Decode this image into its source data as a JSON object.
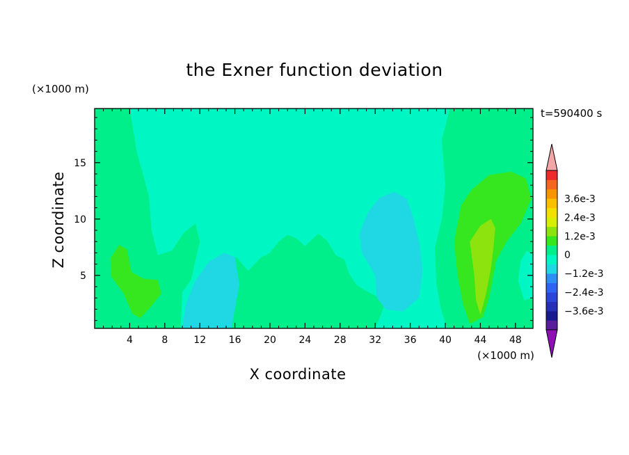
{
  "chart_data": {
    "type": "heatmap",
    "title": "the Exner function deviation",
    "xlabel": "X coordinate",
    "ylabel": "Z coordinate",
    "x_unit": "(×1000 m)",
    "y_unit": "(×1000 m)",
    "time_label": "t=590400 s",
    "xlim": [
      0,
      50
    ],
    "ylim": [
      0.3,
      19.8
    ],
    "x_ticks": [
      4,
      8,
      12,
      16,
      20,
      24,
      28,
      32,
      36,
      40,
      44,
      48
    ],
    "y_ticks": [
      5,
      10,
      15
    ],
    "background_value": -0.0003,
    "regions": [
      {
        "name": "left-column",
        "value": 0.0003,
        "points": [
          [
            0,
            19.8
          ],
          [
            4,
            19.8
          ],
          [
            4.8,
            16
          ],
          [
            6.2,
            12
          ],
          [
            6.5,
            9
          ],
          [
            7.2,
            6.8
          ],
          [
            8.8,
            7.2
          ],
          [
            10.2,
            8.8
          ],
          [
            11.5,
            9.6
          ],
          [
            12,
            8
          ],
          [
            11,
            4.6
          ],
          [
            10,
            3.5
          ],
          [
            9.8,
            0.3
          ],
          [
            0,
            0.3
          ]
        ]
      },
      {
        "name": "left-blob",
        "value": 0.0009,
        "points": [
          [
            1.8,
            6.5
          ],
          [
            2.8,
            7.7
          ],
          [
            3.7,
            7.3
          ],
          [
            4.2,
            5.3
          ],
          [
            5.6,
            4.7
          ],
          [
            7.2,
            4.6
          ],
          [
            7.6,
            3.4
          ],
          [
            6.4,
            2.2
          ],
          [
            5.2,
            1.2
          ],
          [
            4.3,
            1.6
          ],
          [
            3.3,
            3.4
          ],
          [
            1.9,
            4.9
          ]
        ]
      },
      {
        "name": "center-band",
        "value": 0.0003,
        "points": [
          [
            11,
            0.3
          ],
          [
            12.5,
            4
          ],
          [
            14,
            6.3
          ],
          [
            16.2,
            6.6
          ],
          [
            17.5,
            5.4
          ],
          [
            19,
            6.6
          ],
          [
            20,
            7
          ],
          [
            21,
            8
          ],
          [
            22,
            8.6
          ],
          [
            23,
            8.3
          ],
          [
            24,
            7.6
          ],
          [
            25.5,
            8.7
          ],
          [
            26.5,
            8.1
          ],
          [
            27.5,
            6.8
          ],
          [
            28.5,
            6.4
          ],
          [
            29,
            5.2
          ],
          [
            29.8,
            4.2
          ],
          [
            30.8,
            3.7
          ],
          [
            32.5,
            3
          ],
          [
            33,
            2.2
          ],
          [
            32,
            0.3
          ]
        ]
      },
      {
        "name": "right-column",
        "value": 0.0003,
        "points": [
          [
            50,
            19.8
          ],
          [
            40.5,
            19.8
          ],
          [
            39.6,
            17
          ],
          [
            40,
            13
          ],
          [
            39.6,
            10
          ],
          [
            38.8,
            7.4
          ],
          [
            39,
            4.2
          ],
          [
            39.5,
            2
          ],
          [
            40.2,
            0.3
          ],
          [
            50,
            0.3
          ],
          [
            50,
            6
          ],
          [
            49,
            7.5
          ],
          [
            48.3,
            6.4
          ],
          [
            48.2,
            4
          ],
          [
            48.8,
            3
          ],
          [
            50,
            3.2
          ]
        ]
      },
      {
        "name": "right-blob",
        "value": 0.0009,
        "points": [
          [
            41.8,
            11.2
          ],
          [
            43,
            12.6
          ],
          [
            45,
            13.9
          ],
          [
            47.5,
            14.2
          ],
          [
            49.2,
            13.6
          ],
          [
            49.8,
            11.8
          ],
          [
            48.6,
            9.6
          ],
          [
            47,
            8
          ],
          [
            45.8,
            6.3
          ],
          [
            45,
            3
          ],
          [
            44.3,
            1.3
          ],
          [
            42.8,
            0.7
          ],
          [
            42,
            2.5
          ],
          [
            41.4,
            5
          ],
          [
            41,
            8
          ]
        ]
      },
      {
        "name": "right-core",
        "value": 0.0015,
        "points": [
          [
            44,
            9.4
          ],
          [
            45.2,
            10
          ],
          [
            45.7,
            9.2
          ],
          [
            45.5,
            7.5
          ],
          [
            45.2,
            5.6
          ],
          [
            44.6,
            3.2
          ],
          [
            44,
            1.5
          ],
          [
            43.5,
            2.8
          ],
          [
            43.3,
            5
          ],
          [
            43,
            6.8
          ],
          [
            42.8,
            8
          ]
        ]
      },
      {
        "name": "center-left-blob",
        "value": -0.0009,
        "points": [
          [
            10,
            0.3
          ],
          [
            10.4,
            2.4
          ],
          [
            11.4,
            4.4
          ],
          [
            13,
            6.2
          ],
          [
            14.8,
            7
          ],
          [
            16,
            6.6
          ],
          [
            16.5,
            4.2
          ],
          [
            16,
            2
          ],
          [
            15.6,
            0.3
          ]
        ]
      },
      {
        "name": "center-right-blob",
        "value": -0.0009,
        "points": [
          [
            30.2,
            8.7
          ],
          [
            31.2,
            10.6
          ],
          [
            32.5,
            11.9
          ],
          [
            34.2,
            12.4
          ],
          [
            35.6,
            11.8
          ],
          [
            36.4,
            10
          ],
          [
            37.1,
            7.6
          ],
          [
            37.4,
            5.3
          ],
          [
            37,
            3
          ],
          [
            35.2,
            1.8
          ],
          [
            33.2,
            2
          ],
          [
            32.2,
            3
          ],
          [
            32,
            5
          ],
          [
            30.5,
            7
          ]
        ]
      },
      {
        "name": "far-right-patch",
        "value": -0.0003,
        "points": [
          [
            50,
            3
          ],
          [
            49,
            2.8
          ],
          [
            48.3,
            4.5
          ],
          [
            48.6,
            6.3
          ],
          [
            49.3,
            7.2
          ],
          [
            50,
            6.8
          ]
        ]
      }
    ],
    "colorbar": {
      "levels": [
        -0.0042,
        -0.0036,
        -0.003,
        -0.0024,
        -0.0018,
        -0.0012,
        -0.0006,
        0,
        0.0006,
        0.0012,
        0.0018,
        0.0024,
        0.003,
        0.0036,
        0.0042
      ],
      "colors": [
        "#5a1d9c",
        "#1a1a8f",
        "#2530b6",
        "#2a45d8",
        "#2f64f2",
        "#2e8ef4",
        "#1fd8e4",
        "#00f7c4",
        "#00ef8a",
        "#36e61e",
        "#8ce30e",
        "#d6ef05",
        "#f2e100",
        "#f9c000",
        "#f79500",
        "#f46520",
        "#ee2a2a"
      ],
      "under_color": "#8e0fb6",
      "over_color": "#f3a6a6",
      "labels": [
        {
          "text": "3.6e-3",
          "value": 0.0036
        },
        {
          "text": "2.4e-3",
          "value": 0.0024
        },
        {
          "text": "1.2e-3",
          "value": 0.0012
        },
        {
          "text": "0",
          "value": 0
        },
        {
          "text": "−1.2e-3",
          "value": -0.0012
        },
        {
          "text": "−2.4e-3",
          "value": -0.0024
        },
        {
          "text": "−3.6e-3",
          "value": -0.0036
        }
      ]
    }
  }
}
